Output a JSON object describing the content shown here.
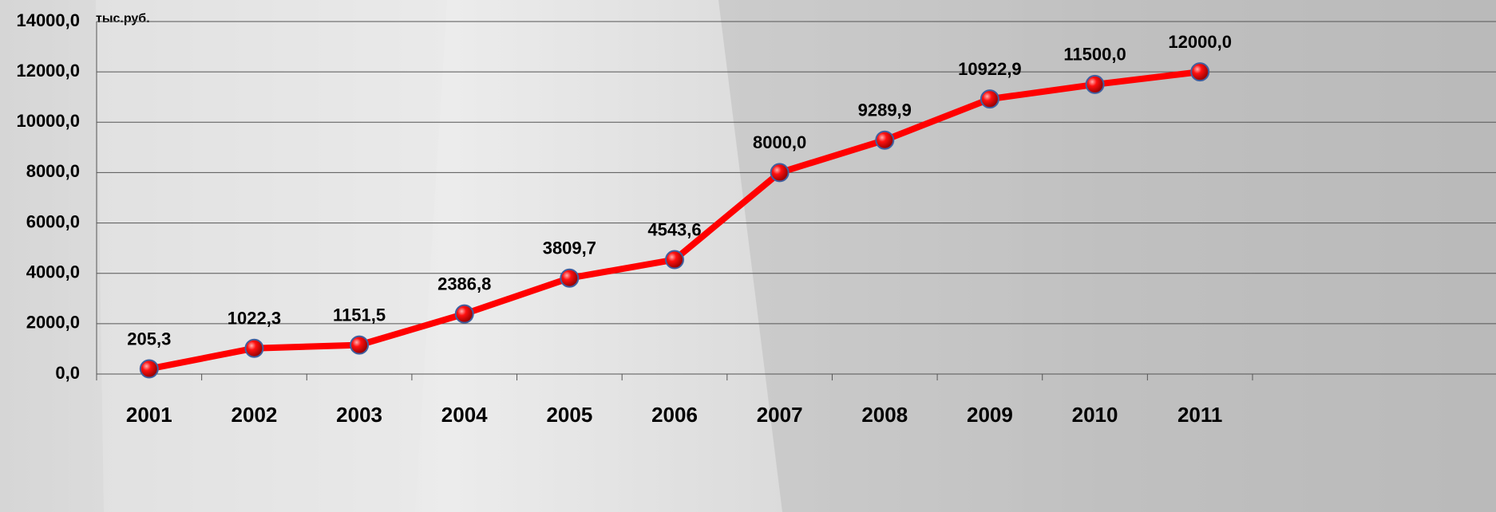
{
  "chart_data": {
    "type": "line",
    "unit_label": "тыс.руб.",
    "categories": [
      "2001",
      "2002",
      "2003",
      "2004",
      "2005",
      "2006",
      "2007",
      "2008",
      "2009",
      "2010",
      "2011"
    ],
    "series": [
      {
        "color": "#ff0000",
        "values": [
          205.3,
          1022.3,
          1151.5,
          2386.8,
          3809.7,
          4543.6,
          8000.0,
          9289.9,
          10922.9,
          11500.0,
          12000.0
        ],
        "value_labels": [
          "205,3",
          "1022,3",
          "1151,5",
          "2386,8",
          "3809,7",
          "4543,6",
          "8000,0",
          "9289,9",
          "10922,9",
          "11500,0",
          "12000,0"
        ]
      }
    ],
    "ylim": [
      0,
      14000
    ],
    "yticks": [
      {
        "value": 0,
        "label": "0,0"
      },
      {
        "value": 2000,
        "label": "2000,0"
      },
      {
        "value": 4000,
        "label": "4000,0"
      },
      {
        "value": 6000,
        "label": "6000,0"
      },
      {
        "value": 8000,
        "label": "8000,0"
      },
      {
        "value": 10000,
        "label": "10000,0"
      },
      {
        "value": 12000,
        "label": "12000,0"
      },
      {
        "value": 14000,
        "label": "14000,0"
      }
    ],
    "grid": true
  }
}
